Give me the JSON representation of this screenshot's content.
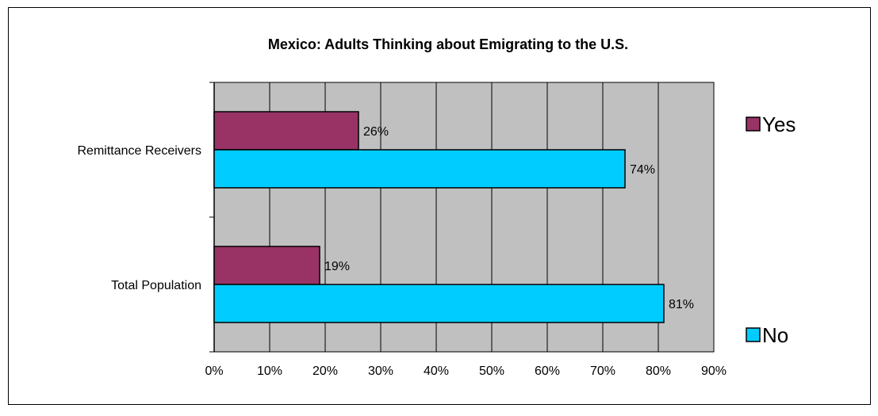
{
  "chart_data": {
    "type": "bar",
    "orientation": "horizontal",
    "title": "Mexico: Adults Thinking about Emigrating to the U.S.",
    "categories": [
      "Remittance Receivers",
      "Total Population"
    ],
    "series": [
      {
        "name": "Yes",
        "values": [
          26,
          19
        ],
        "labels": [
          "26%",
          "19%"
        ],
        "color": "#993366"
      },
      {
        "name": "No",
        "values": [
          74,
          81
        ],
        "labels": [
          "74%",
          "81%"
        ],
        "color": "#00ccff"
      }
    ],
    "xlim": [
      0,
      90
    ],
    "xticks": [
      "0%",
      "10%",
      "20%",
      "30%",
      "40%",
      "50%",
      "60%",
      "70%",
      "80%",
      "90%"
    ],
    "grid": "vertical",
    "plot_background": "#c0c0c0",
    "legend_position": "right"
  }
}
